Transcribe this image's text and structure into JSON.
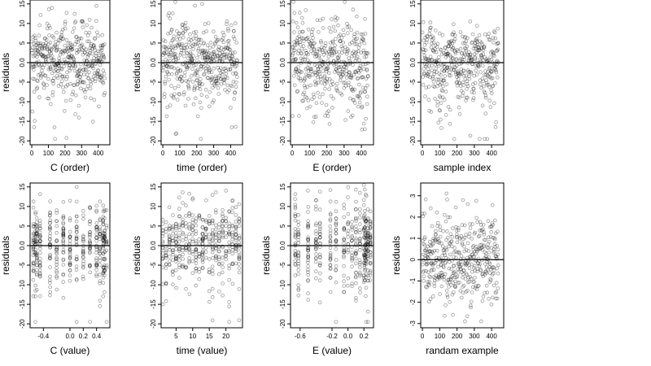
{
  "chart_data": [
    {
      "type": "scatter",
      "id": "c_order",
      "xlabel": "C (order)",
      "ylabel": "residuals",
      "xlim": [
        -10,
        470
      ],
      "ylim": [
        -21,
        16
      ],
      "xticks": [
        0,
        100,
        200,
        300,
        400
      ],
      "xtick_labels": [
        "0",
        "100",
        "200",
        "300",
        "400"
      ],
      "yticks": [
        -20,
        -15,
        -10,
        -5,
        0,
        5,
        10,
        15
      ],
      "ytick_labels": [
        "-20",
        "-15",
        "-10",
        "-5",
        "0.0",
        "5",
        "10",
        "15"
      ],
      "zero_line": 0,
      "n_points": 440,
      "x_pattern": "index",
      "y_pattern": "resid"
    },
    {
      "type": "scatter",
      "id": "time_order",
      "xlabel": "time (order)",
      "ylabel": "residuals",
      "xlim": [
        -10,
        470
      ],
      "ylim": [
        -21,
        16
      ],
      "xticks": [
        0,
        100,
        200,
        300,
        400
      ],
      "xtick_labels": [
        "0",
        "100",
        "200",
        "300",
        "400"
      ],
      "yticks": [
        -20,
        -15,
        -10,
        -5,
        0,
        5,
        10,
        15
      ],
      "ytick_labels": [
        "-20",
        "-15",
        "-10",
        "-5",
        "0.0",
        "5",
        "10",
        "15"
      ],
      "zero_line": 0,
      "n_points": 440,
      "x_pattern": "index",
      "y_pattern": "resid"
    },
    {
      "type": "scatter",
      "id": "e_order",
      "xlabel": "E (order)",
      "ylabel": "residuals",
      "xlim": [
        -10,
        470
      ],
      "ylim": [
        -21,
        16
      ],
      "xticks": [
        0,
        100,
        200,
        300,
        400
      ],
      "xtick_labels": [
        "0",
        "100",
        "200",
        "300",
        "400"
      ],
      "yticks": [
        -20,
        -15,
        -10,
        -5,
        0,
        5,
        10,
        15
      ],
      "ytick_labels": [
        "-20",
        "-15",
        "-10",
        "-5",
        "0.0",
        "5",
        "10",
        "15"
      ],
      "zero_line": 0,
      "n_points": 440,
      "x_pattern": "index",
      "y_pattern": "resid_e"
    },
    {
      "type": "scatter",
      "id": "sample_index",
      "xlabel": "sample index",
      "ylabel": "residuals",
      "xlim": [
        -10,
        470
      ],
      "ylim": [
        -21,
        16
      ],
      "xticks": [
        0,
        100,
        200,
        300,
        400
      ],
      "xtick_labels": [
        "0",
        "100",
        "200",
        "300",
        "400"
      ],
      "yticks": [
        -20,
        -15,
        -10,
        -5,
        0,
        5,
        10,
        15
      ],
      "ytick_labels": [
        "-20",
        "-15",
        "-10",
        "-5",
        "0.0",
        "5",
        "10",
        "15"
      ],
      "zero_line": 0,
      "n_points": 440,
      "x_pattern": "index",
      "y_pattern": "resid_wave"
    },
    {
      "type": "scatter",
      "id": "c_value",
      "xlabel": "C (value)",
      "ylabel": "residuals",
      "xlim": [
        -0.6,
        0.6
      ],
      "ylim": [
        -21,
        16
      ],
      "xticks": [
        -0.4,
        0.0,
        0.2,
        0.4
      ],
      "xtick_labels": [
        "-0.4",
        "0.0",
        "0.2",
        "0.4"
      ],
      "yticks": [
        -20,
        -15,
        -10,
        -5,
        0,
        5,
        10,
        15
      ],
      "ytick_labels": [
        "-20",
        "-15",
        "-10",
        "-5",
        "0.0",
        "5",
        "10",
        "15"
      ],
      "zero_line": 0,
      "n_points": 440,
      "x_levels": [
        -0.55,
        -0.52,
        -0.5,
        -0.45,
        -0.3,
        -0.2,
        -0.1,
        0.0,
        0.1,
        0.2,
        0.3,
        0.4,
        0.45,
        0.5,
        0.52,
        0.55
      ],
      "y_pattern": "resid"
    },
    {
      "type": "scatter",
      "id": "time_value",
      "xlabel": "time (value)",
      "ylabel": "residuals",
      "xlim": [
        0.5,
        25
      ],
      "ylim": [
        -21,
        16
      ],
      "xticks": [
        5,
        10,
        15,
        20
      ],
      "xtick_labels": [
        "5",
        "10",
        "15",
        "20"
      ],
      "yticks": [
        -20,
        -15,
        -10,
        -5,
        0,
        5,
        10,
        15
      ],
      "ytick_labels": [
        "-20",
        "-15",
        "-10",
        "-5",
        "0.0",
        "5",
        "10",
        "15"
      ],
      "zero_line": 0,
      "n_points": 440,
      "x_levels": [
        1,
        2,
        3,
        4,
        5,
        6,
        7,
        8,
        9,
        10,
        11,
        12,
        13,
        14,
        15,
        16,
        17,
        18,
        19,
        20,
        21,
        22,
        23,
        24
      ],
      "y_pattern": "resid"
    },
    {
      "type": "scatter",
      "id": "e_value",
      "xlabel": "E (value)",
      "ylabel": "residuals",
      "xlim": [
        -0.72,
        0.32
      ],
      "ylim": [
        -21,
        16
      ],
      "xticks": [
        -0.6,
        -0.2,
        0.0,
        0.2
      ],
      "xtick_labels": [
        "-0.6",
        "-0.2",
        "0.0",
        "0.2"
      ],
      "yticks": [
        -20,
        -15,
        -10,
        -5,
        0,
        5,
        10,
        15
      ],
      "ytick_labels": [
        "-20",
        "-15",
        "-10",
        "-5",
        "0.0",
        "5",
        "10",
        "15"
      ],
      "zero_line": 0,
      "n_points": 440,
      "x_levels": [
        -0.66,
        -0.62,
        -0.5,
        -0.4,
        -0.35,
        -0.22,
        -0.15,
        -0.05,
        0.0,
        0.05,
        0.1,
        0.15,
        0.2,
        0.21,
        0.22,
        0.23,
        0.25,
        0.28
      ],
      "y_pattern": "resid_e"
    },
    {
      "type": "scatter",
      "id": "random_example",
      "xlabel": "randam example",
      "ylabel": "residuals",
      "xlim": [
        -10,
        470
      ],
      "ylim": [
        -3.2,
        3.6
      ],
      "xticks": [
        0,
        100,
        200,
        300,
        400
      ],
      "xtick_labels": [
        "0",
        "100",
        "200",
        "300",
        "400"
      ],
      "yticks": [
        -3,
        -2,
        -1,
        0,
        1,
        2,
        3
      ],
      "ytick_labels": [
        "-3",
        "-2",
        "-1",
        "0",
        "1",
        "2",
        "3"
      ],
      "zero_line": 0,
      "n_points": 440,
      "x_pattern": "index",
      "y_pattern": "normal"
    }
  ]
}
